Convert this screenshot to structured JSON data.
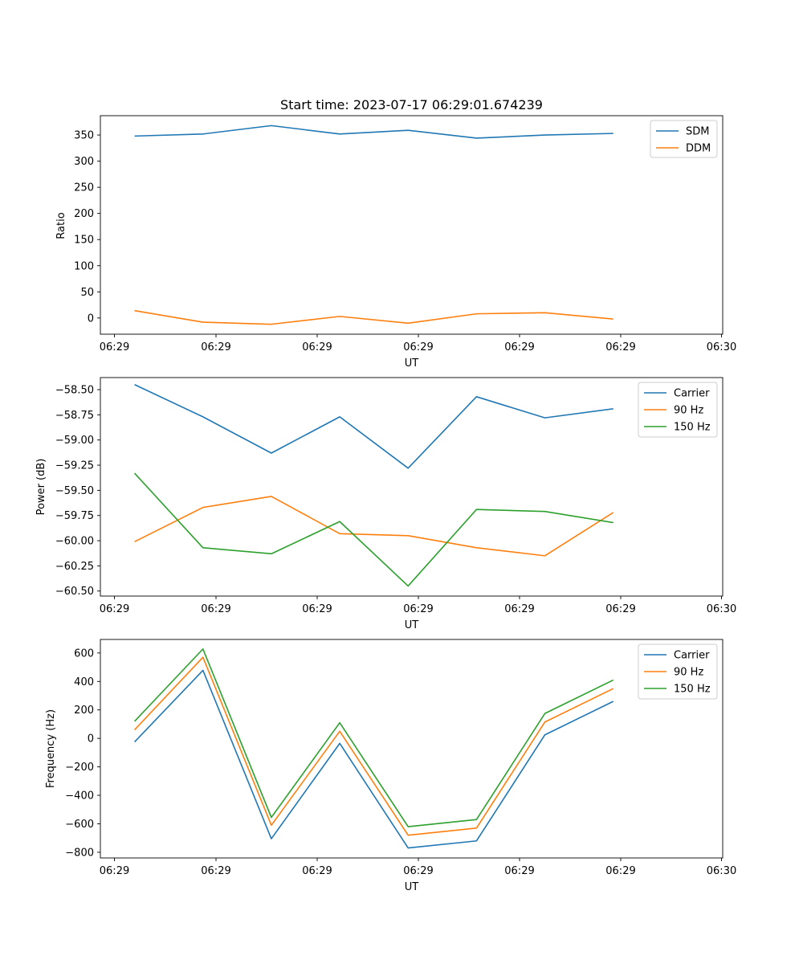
{
  "chart_data": [
    {
      "type": "line",
      "title": "Start time: 2023-07-17 06:29:01.674239",
      "xlabel": "UT",
      "ylabel": "Ratio",
      "x_tick_labels": [
        "06:29",
        "06:29",
        "06:29",
        "06:29",
        "06:29",
        "06:29",
        "06:30"
      ],
      "y_ticks": [
        0,
        50,
        100,
        150,
        200,
        250,
        300,
        350
      ],
      "y_tick_labels": [
        "0",
        "50",
        "100",
        "150",
        "200",
        "250",
        "300",
        "350"
      ],
      "ylim": [
        -31,
        387
      ],
      "xlim": [
        -0.5,
        8.6
      ],
      "x": [
        0,
        1,
        2,
        3,
        4,
        5,
        6,
        7
      ],
      "legend_loc": "upper-right",
      "series": [
        {
          "name": "SDM",
          "color": "#1f77b4",
          "values": [
            348,
            352,
            368,
            352,
            359,
            344,
            350,
            353
          ]
        },
        {
          "name": "DDM",
          "color": "#ff7f0e",
          "values": [
            14,
            -8,
            -12,
            3,
            -10,
            8,
            10,
            -2
          ]
        }
      ]
    },
    {
      "type": "line",
      "title": "",
      "xlabel": "UT",
      "ylabel": "Power (dB)",
      "x_tick_labels": [
        "06:29",
        "06:29",
        "06:29",
        "06:29",
        "06:29",
        "06:29",
        "06:30"
      ],
      "y_ticks": [
        -60.5,
        -60.25,
        -60.0,
        -59.75,
        -59.5,
        -59.25,
        -59.0,
        -58.75,
        -58.5
      ],
      "y_tick_labels": [
        "−60.50",
        "−60.25",
        "−60.00",
        "−59.75",
        "−59.50",
        "−59.25",
        "−59.00",
        "−58.75",
        "−58.50"
      ],
      "ylim": [
        -60.55,
        -58.38
      ],
      "xlim": [
        -0.5,
        8.6
      ],
      "x": [
        0,
        1,
        2,
        3,
        4,
        5,
        6,
        7
      ],
      "legend_loc": "upper-right",
      "series": [
        {
          "name": "Carrier",
          "color": "#1f77b4",
          "values": [
            -58.45,
            -58.77,
            -59.13,
            -58.77,
            -59.28,
            -58.57,
            -58.78,
            -58.69
          ]
        },
        {
          "name": "90 Hz",
          "color": "#ff7f0e",
          "values": [
            -60.01,
            -59.67,
            -59.56,
            -59.93,
            -59.95,
            -60.07,
            -60.15,
            -59.72
          ]
        },
        {
          "name": "150 Hz",
          "color": "#2ca02c",
          "values": [
            -59.33,
            -60.07,
            -60.13,
            -59.81,
            -60.45,
            -59.69,
            -59.71,
            -59.82
          ]
        }
      ]
    },
    {
      "type": "line",
      "title": "",
      "xlabel": "UT",
      "ylabel": "Frequency (Hz)",
      "x_tick_labels": [
        "06:29",
        "06:29",
        "06:29",
        "06:29",
        "06:29",
        "06:29",
        "06:30"
      ],
      "y_ticks": [
        -800,
        -600,
        -400,
        -200,
        0,
        200,
        400,
        600
      ],
      "y_tick_labels": [
        "−800",
        "−600",
        "−400",
        "−200",
        "0",
        "200",
        "400",
        "600"
      ],
      "ylim": [
        -840,
        695
      ],
      "xlim": [
        -0.5,
        8.6
      ],
      "x": [
        0,
        1,
        2,
        3,
        4,
        5,
        6,
        7
      ],
      "legend_loc": "upper-right",
      "series": [
        {
          "name": "Carrier",
          "color": "#1f77b4",
          "values": [
            -25,
            478,
            -705,
            -35,
            -770,
            -720,
            25,
            260
          ]
        },
        {
          "name": "90 Hz",
          "color": "#ff7f0e",
          "values": [
            60,
            570,
            -610,
            50,
            -680,
            -630,
            115,
            350
          ]
        },
        {
          "name": "150 Hz",
          "color": "#2ca02c",
          "values": [
            120,
            628,
            -555,
            110,
            -620,
            -570,
            175,
            410
          ]
        }
      ]
    }
  ]
}
